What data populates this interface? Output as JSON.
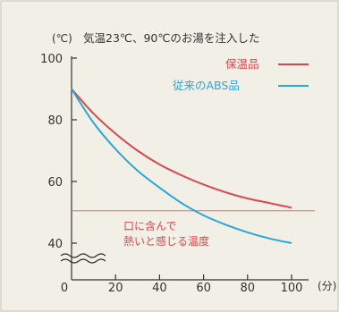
{
  "chart_data": {
    "type": "line",
    "title": "気温23℃、90℃のお湯を注入した",
    "y_unit": "(℃)",
    "x_unit": "(分)",
    "xlim": [
      0,
      105
    ],
    "ylim": [
      30,
      100
    ],
    "x_ticks": [
      0,
      20,
      40,
      60,
      80,
      100
    ],
    "y_ticks": [
      40,
      60,
      80,
      100
    ],
    "legend": "top-right",
    "series": [
      {
        "name": "保温品",
        "color": "#d9484d",
        "x": [
          0,
          10,
          20,
          30,
          40,
          50,
          60,
          70,
          80,
          90,
          100
        ],
        "y": [
          90,
          82,
          75.5,
          70,
          65.5,
          62,
          59,
          56.5,
          54.5,
          53,
          51.5
        ]
      },
      {
        "name": "従来のABS品",
        "color": "#2da6d8",
        "x": [
          0,
          10,
          20,
          30,
          40,
          50,
          60,
          70,
          80,
          90,
          100
        ],
        "y": [
          90,
          79,
          70.5,
          63.5,
          58,
          53,
          49,
          46,
          43.5,
          41.5,
          40
        ]
      }
    ],
    "reference_line": {
      "y": 50.5,
      "color": "#e07060",
      "label_lines": [
        "口に含んで",
        "熱いと感じる温度"
      ]
    }
  }
}
